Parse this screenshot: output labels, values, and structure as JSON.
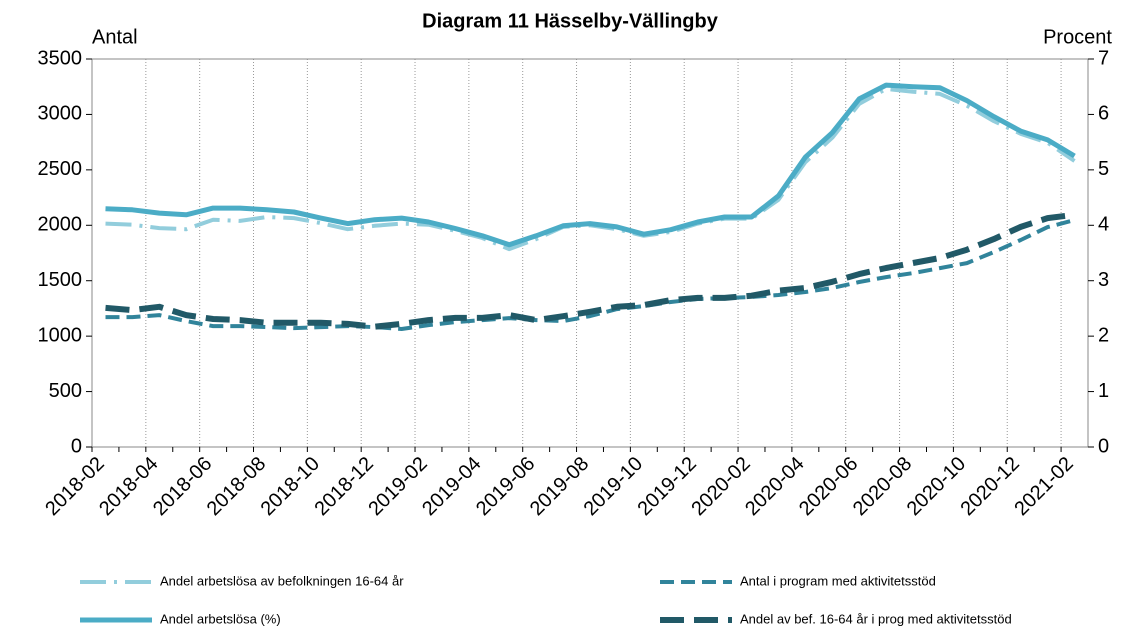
{
  "chart_data": {
    "type": "line",
    "title": "Diagram 11 Hässelby-Vällingby",
    "y_label": "Antal",
    "y2_label": "Procent",
    "categories": [
      "2018-02",
      null,
      "2018-04",
      null,
      "2018-06",
      null,
      "2018-08",
      null,
      "2018-10",
      null,
      "2018-12",
      null,
      "2019-02",
      null,
      "2019-04",
      null,
      "2019-06",
      null,
      "2019-08",
      null,
      "2019-10",
      null,
      "2019-12",
      null,
      "2020-02",
      null,
      "2020-04",
      null,
      "2020-06",
      null,
      "2020-08",
      null,
      "2020-10",
      null,
      "2020-12",
      null,
      "2021-02"
    ],
    "ylim": [
      0,
      3500
    ],
    "yticks": [
      0,
      500,
      1000,
      1500,
      2000,
      2500,
      3000,
      3500
    ],
    "y2lim": [
      0,
      7
    ],
    "y2ticks": [
      0,
      1,
      2,
      3,
      4,
      5,
      6,
      7
    ],
    "grid": true,
    "series": [
      {
        "name": "Andel arbetslösa av befolkningen 16-64 år",
        "color": "#92cddc",
        "style": "dashdot",
        "axis": "y2",
        "values": [
          4.03,
          4.01,
          3.95,
          3.93,
          4.1,
          4.08,
          4.15,
          4.13,
          4.04,
          3.93,
          3.99,
          4.03,
          4.01,
          3.9,
          3.77,
          3.57,
          3.75,
          3.97,
          4.0,
          3.93,
          3.81,
          3.88,
          4.03,
          4.12,
          4.12,
          4.46,
          5.14,
          5.58,
          6.19,
          6.46,
          6.41,
          6.37,
          6.16,
          5.88,
          5.65,
          5.49,
          5.16
        ]
      },
      {
        "name": "Antal i program med aktivitetsstöd",
        "color": "#31849b",
        "style": "dash",
        "axis": "y",
        "values": [
          1172,
          1172,
          1190,
          1136,
          1091,
          1091,
          1082,
          1073,
          1082,
          1091,
          1082,
          1064,
          1100,
          1127,
          1145,
          1163,
          1145,
          1136,
          1181,
          1244,
          1271,
          1308,
          1335,
          1344,
          1353,
          1371,
          1398,
          1434,
          1488,
          1533,
          1569,
          1614,
          1659,
          1758,
          1867,
          1984,
          2047
        ]
      },
      {
        "name": "Andel arbetslösa (%)",
        "color": "#4bacc6",
        "style": "solid",
        "axis": "y2",
        "values": [
          4.3,
          4.28,
          4.22,
          4.19,
          4.31,
          4.31,
          4.28,
          4.24,
          4.13,
          4.03,
          4.1,
          4.13,
          4.06,
          3.94,
          3.81,
          3.65,
          3.81,
          3.99,
          4.03,
          3.97,
          3.84,
          3.92,
          4.06,
          4.15,
          4.15,
          4.53,
          5.23,
          5.67,
          6.28,
          6.53,
          6.5,
          6.48,
          6.25,
          5.96,
          5.7,
          5.54,
          5.25
        ]
      },
      {
        "name": "Andel av bef. 16-64 år i prog med aktivitetsstöd",
        "color": "#215967",
        "style": "longdash",
        "axis": "y2",
        "values": [
          2.51,
          2.47,
          2.53,
          2.38,
          2.31,
          2.29,
          2.24,
          2.24,
          2.24,
          2.22,
          2.17,
          2.22,
          2.29,
          2.33,
          2.33,
          2.38,
          2.29,
          2.36,
          2.44,
          2.53,
          2.56,
          2.65,
          2.69,
          2.69,
          2.73,
          2.82,
          2.87,
          2.98,
          3.12,
          3.23,
          3.32,
          3.41,
          3.56,
          3.75,
          3.97,
          4.13,
          4.19
        ]
      }
    ]
  }
}
